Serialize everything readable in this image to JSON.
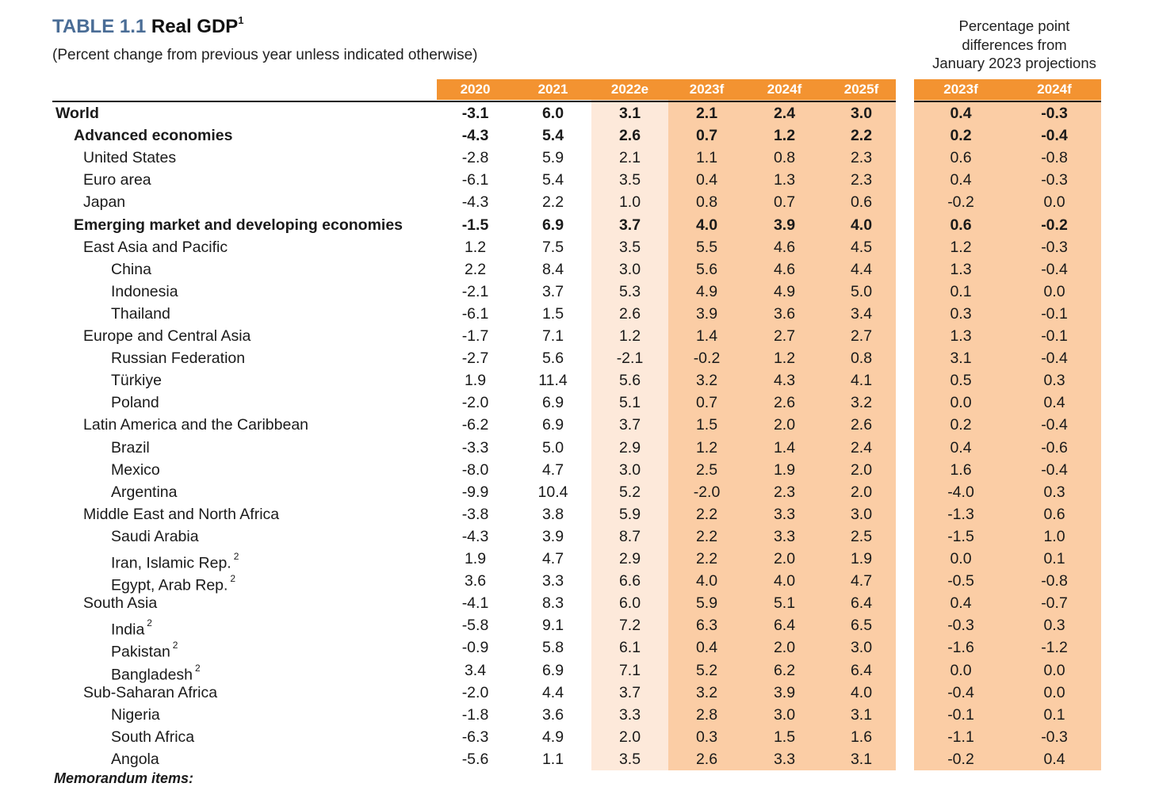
{
  "table": {
    "label": "TABLE 1.1",
    "name": "Real GDP",
    "name_footnote": "1",
    "subtitle": "(Percent change from previous year unless indicated otherwise)",
    "diff_header": {
      "line1": "Percentage point",
      "line2": "differences from",
      "line3": "January 2023 projections"
    },
    "columns": [
      "2020",
      "2021",
      "2022e",
      "2023f",
      "2024f",
      "2025f"
    ],
    "diff_columns": [
      "2023f",
      "2024f"
    ],
    "colors": {
      "header_orange": "#f39331",
      "estimate_band": "#fde9da",
      "forecast_band": "#fbcda5",
      "title_blue": "#4a6d96"
    },
    "rows": [
      {
        "label": "World",
        "indent": 0,
        "bold": true,
        "values": [
          "-3.1",
          "6.0",
          "3.1",
          "2.1",
          "2.4",
          "3.0"
        ],
        "diff": [
          "0.4",
          "-0.3"
        ]
      },
      {
        "label": "Advanced economies",
        "indent": 1,
        "bold": true,
        "values": [
          "-4.3",
          "5.4",
          "2.6",
          "0.7",
          "1.2",
          "2.2"
        ],
        "diff": [
          "0.2",
          "-0.4"
        ]
      },
      {
        "label": "United States",
        "indent": 2,
        "bold": false,
        "values": [
          "-2.8",
          "5.9",
          "2.1",
          "1.1",
          "0.8",
          "2.3"
        ],
        "diff": [
          "0.6",
          "-0.8"
        ]
      },
      {
        "label": "Euro area",
        "indent": 2,
        "bold": false,
        "values": [
          "-6.1",
          "5.4",
          "3.5",
          "0.4",
          "1.3",
          "2.3"
        ],
        "diff": [
          "0.4",
          "-0.3"
        ]
      },
      {
        "label": "Japan",
        "indent": 2,
        "bold": false,
        "values": [
          "-4.3",
          "2.2",
          "1.0",
          "0.8",
          "0.7",
          "0.6"
        ],
        "diff": [
          "-0.2",
          "0.0"
        ]
      },
      {
        "label": "Emerging market and developing economies",
        "indent": 1,
        "bold": true,
        "values": [
          "-1.5",
          "6.9",
          "3.7",
          "4.0",
          "3.9",
          "4.0"
        ],
        "diff": [
          "0.6",
          "-0.2"
        ]
      },
      {
        "label": "East Asia and Pacific",
        "indent": 2,
        "bold": false,
        "values": [
          "1.2",
          "7.5",
          "3.5",
          "5.5",
          "4.6",
          "4.5"
        ],
        "diff": [
          "1.2",
          "-0.3"
        ]
      },
      {
        "label": "China",
        "indent": 3,
        "bold": false,
        "values": [
          "2.2",
          "8.4",
          "3.0",
          "5.6",
          "4.6",
          "4.4"
        ],
        "diff": [
          "1.3",
          "-0.4"
        ]
      },
      {
        "label": "Indonesia",
        "indent": 3,
        "bold": false,
        "values": [
          "-2.1",
          "3.7",
          "5.3",
          "4.9",
          "4.9",
          "5.0"
        ],
        "diff": [
          "0.1",
          "0.0"
        ]
      },
      {
        "label": "Thailand",
        "indent": 3,
        "bold": false,
        "values": [
          "-6.1",
          "1.5",
          "2.6",
          "3.9",
          "3.6",
          "3.4"
        ],
        "diff": [
          "0.3",
          "-0.1"
        ]
      },
      {
        "label": "Europe and Central Asia",
        "indent": 2,
        "bold": false,
        "values": [
          "-1.7",
          "7.1",
          "1.2",
          "1.4",
          "2.7",
          "2.7"
        ],
        "diff": [
          "1.3",
          "-0.1"
        ]
      },
      {
        "label": "Russian Federation",
        "indent": 3,
        "bold": false,
        "values": [
          "-2.7",
          "5.6",
          "-2.1",
          "-0.2",
          "1.2",
          "0.8"
        ],
        "diff": [
          "3.1",
          "-0.4"
        ]
      },
      {
        "label": "Türkiye",
        "indent": 3,
        "bold": false,
        "values": [
          "1.9",
          "11.4",
          "5.6",
          "3.2",
          "4.3",
          "4.1"
        ],
        "diff": [
          "0.5",
          "0.3"
        ]
      },
      {
        "label": "Poland",
        "indent": 3,
        "bold": false,
        "values": [
          "-2.0",
          "6.9",
          "5.1",
          "0.7",
          "2.6",
          "3.2"
        ],
        "diff": [
          "0.0",
          "0.4"
        ]
      },
      {
        "label": "Latin America and the Caribbean",
        "indent": 2,
        "bold": false,
        "values": [
          "-6.2",
          "6.9",
          "3.7",
          "1.5",
          "2.0",
          "2.6"
        ],
        "diff": [
          "0.2",
          "-0.4"
        ]
      },
      {
        "label": "Brazil",
        "indent": 3,
        "bold": false,
        "values": [
          "-3.3",
          "5.0",
          "2.9",
          "1.2",
          "1.4",
          "2.4"
        ],
        "diff": [
          "0.4",
          "-0.6"
        ]
      },
      {
        "label": "Mexico",
        "indent": 3,
        "bold": false,
        "values": [
          "-8.0",
          "4.7",
          "3.0",
          "2.5",
          "1.9",
          "2.0"
        ],
        "diff": [
          "1.6",
          "-0.4"
        ]
      },
      {
        "label": "Argentina",
        "indent": 3,
        "bold": false,
        "values": [
          "-9.9",
          "10.4",
          "5.2",
          "-2.0",
          "2.3",
          "2.0"
        ],
        "diff": [
          "-4.0",
          "0.3"
        ]
      },
      {
        "label": "Middle East and North Africa",
        "indent": 2,
        "bold": false,
        "values": [
          "-3.8",
          "3.8",
          "5.9",
          "2.2",
          "3.3",
          "3.0"
        ],
        "diff": [
          "-1.3",
          "0.6"
        ]
      },
      {
        "label": "Saudi Arabia",
        "indent": 3,
        "bold": false,
        "values": [
          "-4.3",
          "3.9",
          "8.7",
          "2.2",
          "3.3",
          "2.5"
        ],
        "diff": [
          "-1.5",
          "1.0"
        ]
      },
      {
        "label": "Iran, Islamic Rep.",
        "footnote": "2",
        "indent": 3,
        "bold": false,
        "values": [
          "1.9",
          "4.7",
          "2.9",
          "2.2",
          "2.0",
          "1.9"
        ],
        "diff": [
          "0.0",
          "0.1"
        ]
      },
      {
        "label": "Egypt, Arab Rep.",
        "footnote": "2",
        "indent": 3,
        "bold": false,
        "values": [
          "3.6",
          "3.3",
          "6.6",
          "4.0",
          "4.0",
          "4.7"
        ],
        "diff": [
          "-0.5",
          "-0.8"
        ]
      },
      {
        "label": "South Asia",
        "indent": 2,
        "bold": false,
        "values": [
          "-4.1",
          "8.3",
          "6.0",
          "5.9",
          "5.1",
          "6.4"
        ],
        "diff": [
          "0.4",
          "-0.7"
        ]
      },
      {
        "label": "India",
        "footnote": "2",
        "indent": 3,
        "bold": false,
        "values": [
          "-5.8",
          "9.1",
          "7.2",
          "6.3",
          "6.4",
          "6.5"
        ],
        "diff": [
          "-0.3",
          "0.3"
        ]
      },
      {
        "label": "Pakistan",
        "footnote": "2",
        "indent": 3,
        "bold": false,
        "values": [
          "-0.9",
          "5.8",
          "6.1",
          "0.4",
          "2.0",
          "3.0"
        ],
        "diff": [
          "-1.6",
          "-1.2"
        ]
      },
      {
        "label": "Bangladesh",
        "footnote": "2",
        "indent": 3,
        "bold": false,
        "values": [
          "3.4",
          "6.9",
          "7.1",
          "5.2",
          "6.2",
          "6.4"
        ],
        "diff": [
          "0.0",
          "0.0"
        ]
      },
      {
        "label": "Sub-Saharan Africa",
        "indent": 2,
        "bold": false,
        "values": [
          "-2.0",
          "4.4",
          "3.7",
          "3.2",
          "3.9",
          "4.0"
        ],
        "diff": [
          "-0.4",
          "0.0"
        ]
      },
      {
        "label": "Nigeria",
        "indent": 3,
        "bold": false,
        "values": [
          "-1.8",
          "3.6",
          "3.3",
          "2.8",
          "3.0",
          "3.1"
        ],
        "diff": [
          "-0.1",
          "0.1"
        ]
      },
      {
        "label": "South Africa",
        "indent": 3,
        "bold": false,
        "values": [
          "-6.3",
          "4.9",
          "2.0",
          "0.3",
          "1.5",
          "1.6"
        ],
        "diff": [
          "-1.1",
          "-0.3"
        ]
      },
      {
        "label": "Angola",
        "indent": 3,
        "bold": false,
        "values": [
          "-5.6",
          "1.1",
          "3.5",
          "2.6",
          "3.3",
          "3.1"
        ],
        "diff": [
          "-0.2",
          "0.4"
        ]
      }
    ],
    "memo_label": "Memorandum items:"
  }
}
